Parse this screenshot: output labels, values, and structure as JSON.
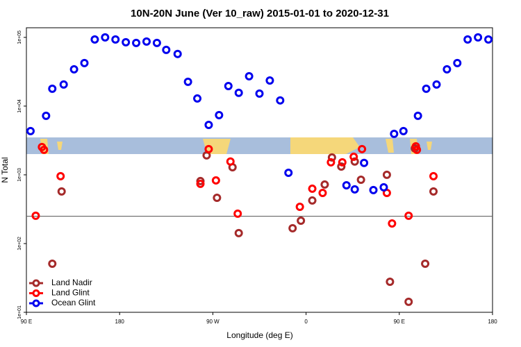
{
  "chart_data": {
    "type": "scatter",
    "title": "10N-20N June (Ver 10_raw)   2015-01-01 to 2020-12-31",
    "xlabel": "Longitude (deg E)",
    "ylabel": "N Total",
    "xlim": [
      90,
      540
    ],
    "xticks": [
      {
        "value": 90,
        "label": "90 E"
      },
      180,
      {
        "value": 270,
        "label": "90 W"
      },
      {
        "value": 360,
        "label": "0"
      },
      {
        "value": 450,
        "label": "90 E"
      },
      {
        "value": 540,
        "label": "180"
      }
    ],
    "ylim": [
      10,
      138000
    ],
    "log_y": true,
    "yticks": [
      {
        "value": 10,
        "label": "1e+01"
      },
      {
        "value": 100,
        "label": "1e+02"
      },
      {
        "value": 1000,
        "label": "1e+03"
      },
      {
        "value": 10000,
        "label": "1e+04"
      },
      {
        "value": 100000,
        "label": "1e+05"
      }
    ],
    "hline": 250,
    "legend": "lower left",
    "series": [
      {
        "name": "Land Nadir",
        "color": "#a52a2a",
        "x": [
          115,
          124,
          258,
          264,
          274,
          289,
          295,
          347,
          355,
          366,
          378,
          385,
          394,
          407,
          413,
          438,
          441,
          459,
          465,
          475,
          483
        ],
        "values": [
          50.9,
          573,
          811,
          1920,
          464,
          1290,
          142,
          167,
          215,
          423,
          722,
          1790,
          1320,
          1560,
          849,
          1000,
          27.8,
          14.2,
          2420,
          50.9,
          573
        ]
      },
      {
        "name": "Land Glint",
        "color": "#ff0000",
        "x": [
          99,
          105,
          107,
          123,
          258,
          266,
          273,
          287,
          294,
          354,
          366,
          376,
          384,
          395,
          406,
          414,
          438,
          443,
          459,
          466,
          467,
          483
        ],
        "values": [
          254,
          2540,
          2310,
          955,
          739,
          2370,
          830,
          1560,
          272,
          343,
          628,
          546,
          1520,
          1520,
          1830,
          2370,
          546,
          196,
          254,
          2600,
          2310,
          955
        ]
      },
      {
        "name": "Ocean Glint",
        "color": "#0000ee",
        "x": [
          94,
          109,
          115,
          126,
          136,
          146,
          156,
          166,
          176,
          186,
          196,
          206,
          216,
          225,
          236,
          246,
          255,
          266,
          276,
          285,
          295,
          305,
          315,
          325,
          335,
          343,
          399,
          407,
          416,
          425,
          435,
          445,
          454,
          468,
          476,
          486,
          496,
          506,
          516,
          526,
          536
        ],
        "values": [
          4330,
          7230,
          17900,
          20600,
          34300,
          42300,
          93300,
          100000,
          93300,
          84900,
          83000,
          86900,
          83000,
          65800,
          57300,
          22600,
          12900,
          5330,
          7400,
          19600,
          15600,
          27200,
          15200,
          23600,
          12100,
          1070,
          705,
          614,
          1490,
          600,
          658,
          3950,
          4330,
          7230,
          17900,
          20600,
          34300,
          42300,
          93300,
          100000,
          93300
        ]
      }
    ]
  }
}
